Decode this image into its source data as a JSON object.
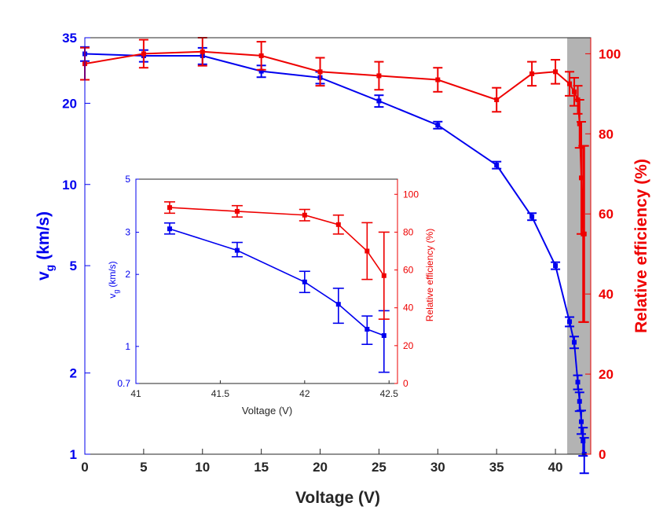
{
  "chart_data": {
    "main": {
      "type": "line",
      "xlabel": "Voltage (V)",
      "ylabel_left": "v",
      "ylabel_left_sub": "g",
      "ylabel_left_unit": "(km/s)",
      "ylabel_right": "Relative efficiency (%)",
      "xlim": [
        0,
        43
      ],
      "ylim_left": [
        1,
        35
      ],
      "yscale_left": "log",
      "ylim_right": [
        0,
        104
      ],
      "xticks": [
        "0",
        "5",
        "10",
        "15",
        "20",
        "25",
        "30",
        "35",
        "40"
      ],
      "yticks_left": [
        "1",
        "2",
        "5",
        "10",
        "20",
        "35"
      ],
      "yticks_right": [
        "0",
        "20",
        "40",
        "60",
        "80",
        "100"
      ],
      "shaded_region_x": [
        41,
        43
      ],
      "series": [
        {
          "name": "v_g",
          "axis": "left",
          "color": "#0000ee",
          "x": [
            0,
            5,
            10,
            15,
            20,
            25,
            30,
            35,
            38,
            40,
            41.2,
            41.6,
            41.9,
            42.05,
            42.2,
            42.35,
            42.45
          ],
          "y": [
            30.5,
            30,
            30,
            26.3,
            24.9,
            20.4,
            16.6,
            11.8,
            7.6,
            5.0,
            3.1,
            2.6,
            1.85,
            1.57,
            1.32,
            1.12,
            1.0
          ],
          "err": [
            0.06,
            0.05,
            0.07,
            0.05,
            0.05,
            0.05,
            0.03,
            0.03,
            0.03,
            0.03,
            0.04,
            0.05,
            0.06,
            0.08,
            0.1,
            0.12,
            0.15
          ]
        },
        {
          "name": "Relative efficiency",
          "axis": "right",
          "color": "#ee0000",
          "x": [
            0,
            5,
            10,
            15,
            20,
            25,
            30,
            35,
            38,
            40,
            41.2,
            41.6,
            41.9,
            42.05,
            42.2,
            42.35,
            42.45
          ],
          "y": [
            97.5,
            100,
            100.5,
            99.5,
            95.5,
            94.5,
            93.5,
            88.5,
            95,
            95.5,
            92.5,
            90.5,
            88.5,
            82.5,
            69,
            55,
            55
          ],
          "err": [
            4,
            3.5,
            3.5,
            3.5,
            3.5,
            3.5,
            3,
            3,
            3,
            3,
            3,
            3.5,
            3.5,
            6,
            14,
            22,
            22
          ]
        }
      ]
    },
    "inset": {
      "type": "line",
      "xlabel": "Voltage (V)",
      "ylabel_left": "v",
      "ylabel_left_sub": "g",
      "ylabel_left_unit": "(km/s)",
      "ylabel_right": "Relative efficiency (%)",
      "xlim": [
        41,
        42.55
      ],
      "ylim_left": [
        0.7,
        5
      ],
      "yscale_left": "log",
      "ylim_right": [
        0,
        108
      ],
      "xticks": [
        "41",
        "41.5",
        "42",
        "42.5"
      ],
      "yticks_left": [
        "0.7",
        "1",
        "2",
        "3",
        "5"
      ],
      "yticks_right": [
        "0",
        "20",
        "40",
        "60",
        "80",
        "100"
      ],
      "series": [
        {
          "name": "v_g",
          "axis": "left",
          "color": "#0000ee",
          "x": [
            41.2,
            41.6,
            42.0,
            42.2,
            42.37,
            42.47
          ],
          "y": [
            3.1,
            2.52,
            1.86,
            1.5,
            1.18,
            1.11
          ],
          "err_low": [
            0.15,
            0.15,
            0.18,
            0.25,
            0.16,
            0.33
          ],
          "err_high": [
            0.18,
            0.2,
            0.2,
            0.25,
            0.16,
            0.3
          ]
        },
        {
          "name": "Relative efficiency",
          "axis": "right",
          "color": "#ee0000",
          "x": [
            41.2,
            41.6,
            42.0,
            42.2,
            42.37,
            42.47
          ],
          "y": [
            93,
            91,
            89,
            84,
            70,
            57
          ],
          "err": [
            3,
            3,
            3,
            5,
            15,
            23
          ]
        }
      ]
    }
  }
}
